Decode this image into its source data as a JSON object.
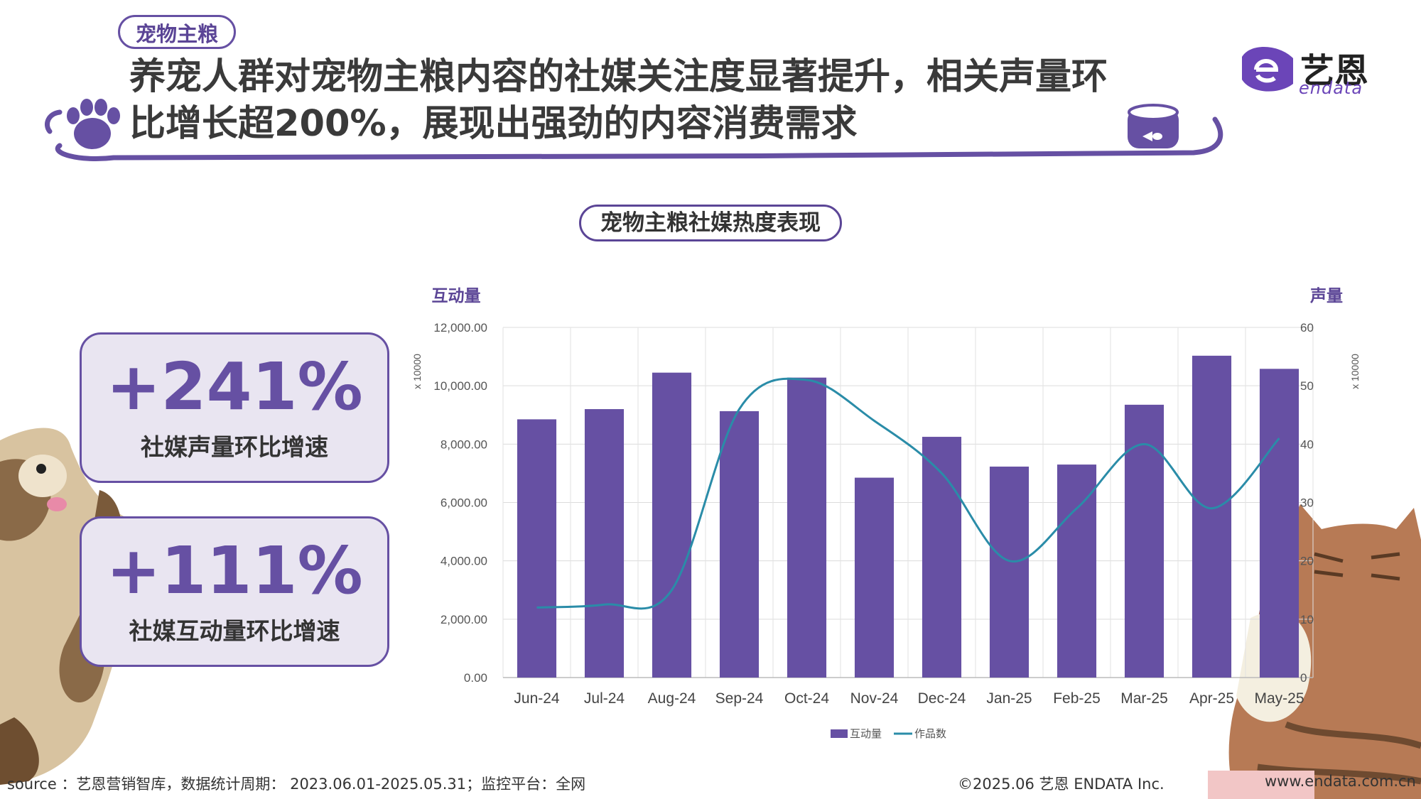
{
  "header": {
    "tag": "宠物主粮",
    "title_line1": "养宠人群对宠物主粮内容的社媒关注度显著提升，相关声量环",
    "title_line2": "比增长超200%，展现出强劲的内容消费需求",
    "logo_text": "艺恩",
    "logo_sub": "endata"
  },
  "stats": [
    {
      "value": "+241%",
      "label": "社媒声量环比增速"
    },
    {
      "value": "+111%",
      "label": "社媒互动量环比增速"
    }
  ],
  "chart_title": "宠物主粮社媒热度表现",
  "footer": {
    "source": "source ：艺恩营销智库，数据统计周期： 2023.06.01-2025.05.31；监控平台：全网",
    "copyright": "©2025.06  艺恩 ENDATA Inc.",
    "url": "www.endata.com.cn"
  },
  "colors": {
    "accent": "#6650a3",
    "bar": "#6650a3",
    "line": "#2a8ca8"
  },
  "chart_data": {
    "type": "bar",
    "categories": [
      "Jun-24",
      "Jul-24",
      "Aug-24",
      "Sep-24",
      "Oct-24",
      "Nov-24",
      "Dec-24",
      "Jan-25",
      "Feb-25",
      "Mar-25",
      "Apr-25",
      "May-25"
    ],
    "series": [
      {
        "name": "互动量",
        "type": "bar",
        "axis": "left",
        "values": [
          8850,
          9200,
          10450,
          9130,
          10280,
          6850,
          8250,
          7230,
          7300,
          9350,
          11030,
          10580
        ]
      },
      {
        "name": "作品数",
        "type": "line",
        "axis": "right",
        "values": [
          12,
          12.5,
          15,
          46,
          51,
          44,
          35,
          20,
          29,
          40,
          29,
          41
        ]
      }
    ],
    "ylabel": "互动量",
    "y2label": "声量",
    "ylim": [
      0,
      12000
    ],
    "y2lim": [
      0,
      60
    ],
    "yticks": [
      "0.00",
      "2,000.00",
      "4,000.00",
      "6,000.00",
      "8,000.00",
      "10,000.00",
      "12,000.00"
    ],
    "y2ticks": [
      "0",
      "10",
      "20",
      "30",
      "40",
      "50",
      "60"
    ],
    "yunit": "x 10000",
    "y2unit": "x 10000",
    "grid": true,
    "legend": "bottom"
  }
}
